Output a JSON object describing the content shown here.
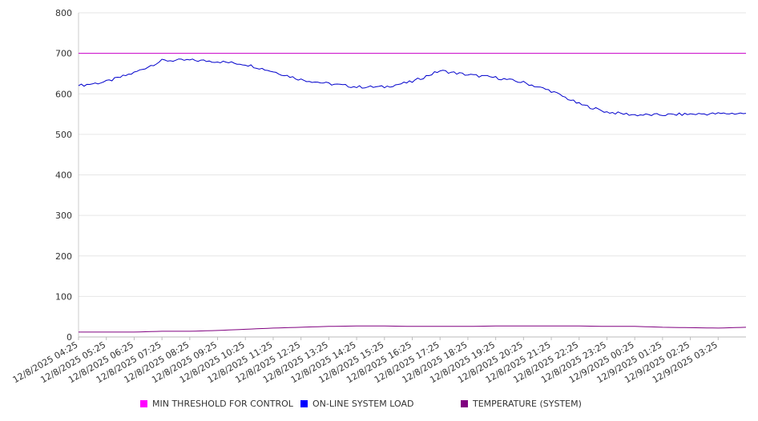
{
  "chart_data": {
    "type": "line",
    "ylim": [
      0,
      800
    ],
    "y_ticks": [
      0,
      100,
      200,
      300,
      400,
      500,
      600,
      700,
      800
    ],
    "x_ticks": [
      "12/8/2025 04:25",
      "12/8/2025 05:25",
      "12/8/2025 06:25",
      "12/8/2025 07:25",
      "12/8/2025 08:25",
      "12/8/2025 09:25",
      "12/8/2025 10:25",
      "12/8/2025 11:25",
      "12/8/2025 12:25",
      "12/8/2025 13:25",
      "12/8/2025 14:25",
      "12/8/2025 15:25",
      "12/8/2025 16:25",
      "12/8/2025 17:25",
      "12/8/2025 18:25",
      "12/8/2025 19:25",
      "12/8/2025 20:25",
      "12/8/2025 21:25",
      "12/8/2025 22:25",
      "12/8/2025 23:25",
      "12/9/2025 00:25",
      "12/9/2025 01:25",
      "12/9/2025 02:25",
      "12/9/2025 03:25"
    ],
    "x_end": "12/9/2025 04:25",
    "grid": true,
    "legend_position": "bottom",
    "series": [
      {
        "name": "MIN THRESHOLD FOR CONTROL",
        "color": "#cc00cc",
        "values": [
          700,
          700,
          700,
          700,
          700,
          700,
          700,
          700,
          700,
          700,
          700,
          700,
          700,
          700,
          700,
          700,
          700,
          700,
          700,
          700,
          700,
          700,
          700,
          700,
          700
        ]
      },
      {
        "name": "ON-LINE SYSTEM LOAD",
        "color": "#0000cc",
        "values": [
          620,
          630,
          652,
          682,
          683,
          680,
          673,
          655,
          635,
          625,
          617,
          617,
          630,
          657,
          647,
          640,
          628,
          607,
          575,
          555,
          548,
          548,
          550,
          551,
          552
        ]
      },
      {
        "name": "TEMPERATURE (SYSTEM)",
        "color": "#800080",
        "values": [
          12,
          12,
          12,
          14,
          14,
          16,
          19,
          22,
          24,
          26,
          27,
          27,
          26,
          26,
          26,
          27,
          27,
          27,
          27,
          26,
          26,
          24,
          23,
          22,
          24
        ]
      }
    ]
  },
  "legend": [
    {
      "label": "MIN THRESHOLD FOR CONTROL",
      "color": "#ff00ff"
    },
    {
      "label": "ON-LINE SYSTEM LOAD",
      "color": "#0000ff"
    },
    {
      "label": "TEMPERATURE (SYSTEM)",
      "color": "#800080"
    }
  ]
}
